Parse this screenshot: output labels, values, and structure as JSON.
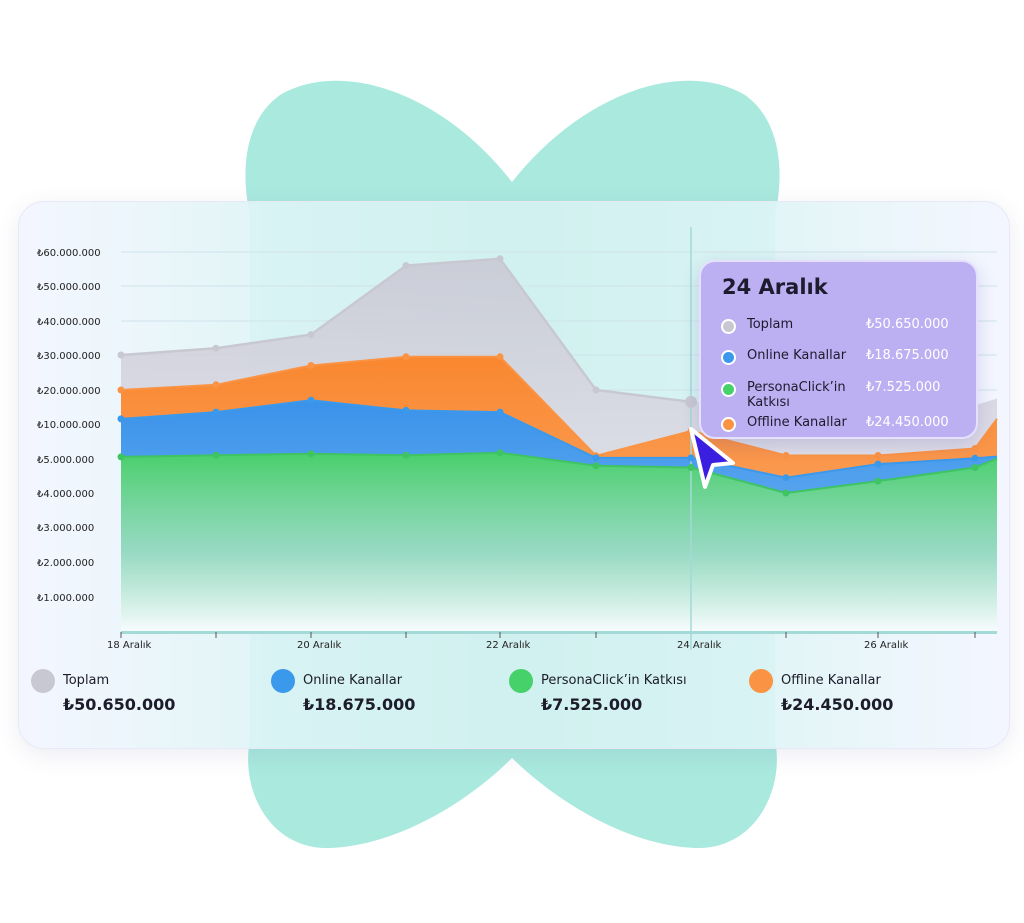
{
  "chart_data": {
    "type": "area",
    "subtype": "stacked",
    "y_tick_labels": [
      "₺60.000.000",
      "₺50.000.000",
      "₺40.000.000",
      "₺30.000.000",
      "₺20.000.000",
      "₺10.000.000",
      "₺5.000.000",
      "₺4.000.000",
      "₺3.000.000",
      "₺2.000.000",
      "₺1.000.000"
    ],
    "x_tick_labels": [
      "18 Aralık",
      "",
      "20 Aralık",
      "",
      "22 Aralık",
      "",
      "24 Aralık",
      "",
      "26 Aralık",
      ""
    ],
    "grid": true,
    "highlight_index": 6,
    "series": [
      {
        "key": "green",
        "name": "PersonaClick’in Katkısı",
        "color": "#47d16a",
        "values": [
          5.3,
          5.55,
          5.75,
          5.55,
          5.9,
          4.8,
          4.75,
          4.0,
          4.35,
          4.75,
          5.05
        ]
      },
      {
        "key": "blue",
        "name": "Online Kanallar",
        "color": "#3b99ec",
        "values": [
          11.5,
          13.5,
          17.0,
          14.0,
          13.5,
          5.15,
          5.15,
          4.45,
          4.85,
          5.1,
          5.35
        ]
      },
      {
        "key": "orange",
        "name": "Offline Kanallar",
        "color": "#fb9344",
        "values": [
          20.0,
          21.5,
          27.0,
          29.5,
          29.5,
          5.45,
          9.0,
          5.5,
          5.5,
          6.5,
          11.5
        ]
      },
      {
        "key": "grey",
        "name": "Toplam",
        "color": "#c8c8d3",
        "values": [
          30.0,
          32.0,
          36.0,
          56.0,
          58.0,
          20.0,
          16.5,
          null,
          null,
          null,
          17.5
        ]
      }
    ]
  },
  "legend": [
    {
      "label": "Toplam",
      "value": "₺50.650.000",
      "color": "#c8c8d3"
    },
    {
      "label": "Online Kanallar",
      "value": "₺18.675.000",
      "color": "#3b99ec"
    },
    {
      "label": "PersonaClick’in Katkısı",
      "value": "₺7.525.000",
      "color": "#47d16a"
    },
    {
      "label": "Offline Kanallar",
      "value": "₺24.450.000",
      "color": "#fb9344"
    }
  ],
  "tooltip": {
    "title": "24 Aralık",
    "rows": [
      {
        "label": "Toplam",
        "value": "₺50.650.000",
        "color": "#c8c8d3"
      },
      {
        "label": "Online Kanallar",
        "value": "₺18.675.000",
        "color": "#3b99ec"
      },
      {
        "label": "PersonaClick’in Katkısı",
        "value": "₺7.525.000",
        "color": "#47d16a"
      },
      {
        "label": "Offline Kanallar",
        "value": "₺24.450.000",
        "color": "#fb9344"
      }
    ]
  },
  "colors": {
    "blob": "#a9e9de",
    "tooltip_bg": "#bdb0f2",
    "cursor": "#3b1fe0"
  },
  "icons": {
    "cursor": "mouse-pointer-icon"
  }
}
